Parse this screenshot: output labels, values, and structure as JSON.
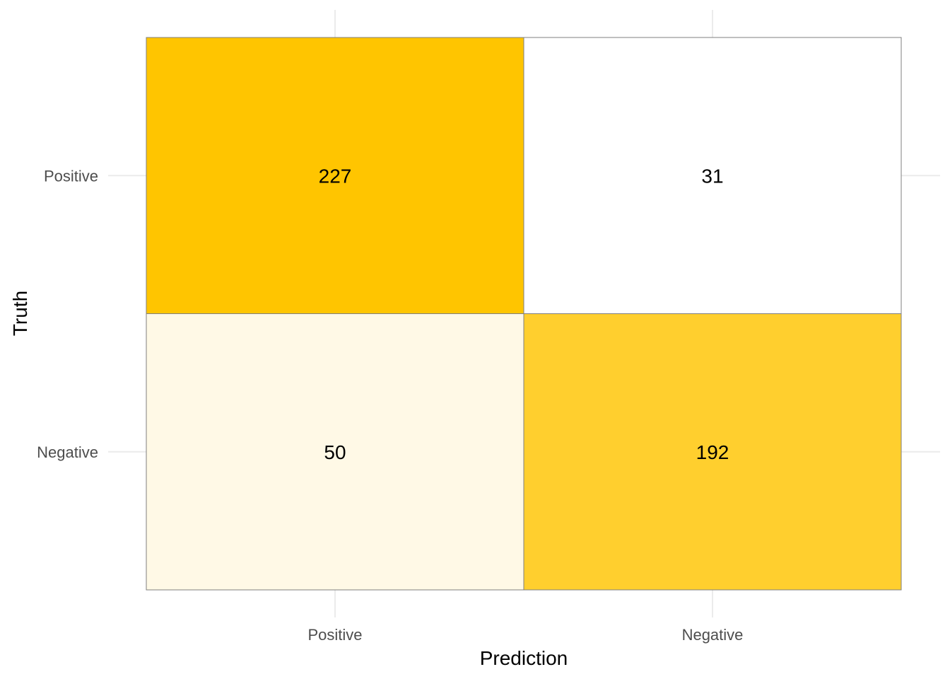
{
  "chart_data": {
    "type": "heatmap",
    "title": "",
    "xlabel": "Prediction",
    "ylabel": "Truth",
    "x_categories": [
      "Positive",
      "Negative"
    ],
    "y_categories": [
      "Positive",
      "Negative"
    ],
    "cells": [
      {
        "truth": "Positive",
        "prediction": "Positive",
        "value": 227
      },
      {
        "truth": "Positive",
        "prediction": "Negative",
        "value": 31
      },
      {
        "truth": "Negative",
        "prediction": "Positive",
        "value": 50
      },
      {
        "truth": "Negative",
        "prediction": "Negative",
        "value": 192
      }
    ],
    "color_scale": {
      "low": "#ffffff",
      "high": "#ffc500"
    },
    "grid": true,
    "legend": "none"
  }
}
